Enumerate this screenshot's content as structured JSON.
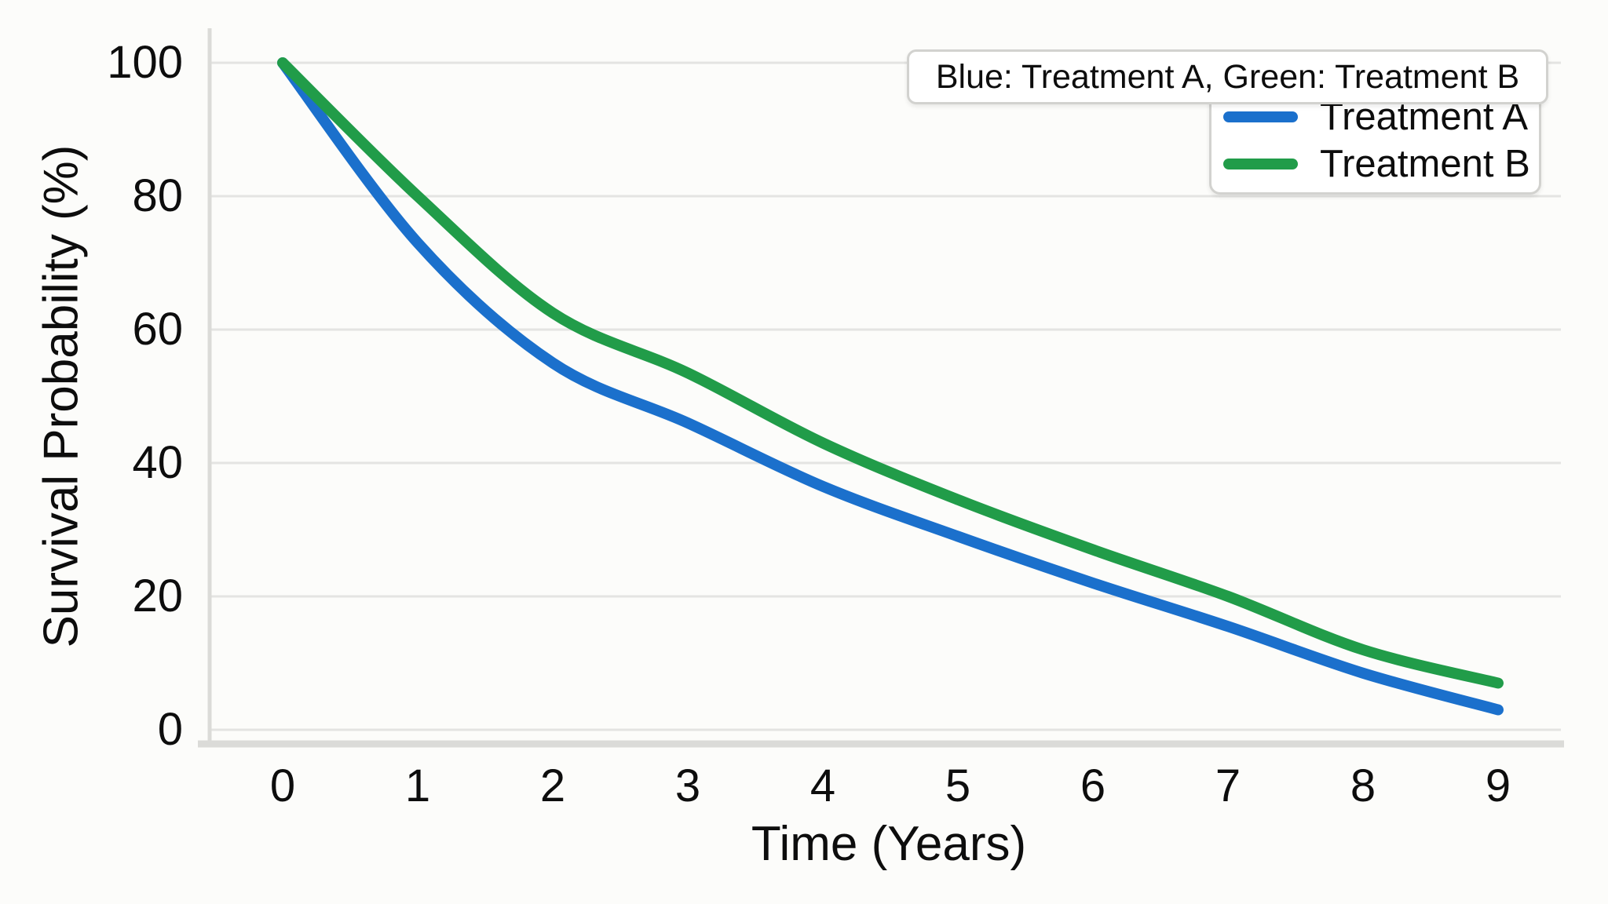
{
  "chart_data": {
    "type": "line",
    "xlabel": "Time (Years)",
    "ylabel": "Survival Probability (%)",
    "legend_title": "Blue: Treatment A, Green: Treatment B",
    "legend_position": "upper right",
    "grid": "horizontal",
    "xlim": [
      0,
      9
    ],
    "ylim": [
      0,
      100
    ],
    "x": [
      0,
      1,
      2,
      3,
      4,
      5,
      6,
      7,
      8,
      9
    ],
    "x_ticks": [
      0,
      1,
      2,
      3,
      4,
      5,
      6,
      7,
      8,
      9
    ],
    "y_ticks": [
      0,
      20,
      40,
      60,
      80,
      100
    ],
    "series": [
      {
        "name": "Treatment A",
        "color": "#1b70cc",
        "values": [
          100,
          73,
          55,
          46,
          36.5,
          29,
          22,
          15.5,
          8.5,
          3
        ]
      },
      {
        "name": "Treatment B",
        "color": "#219c49",
        "values": [
          100,
          80,
          62.5,
          53.5,
          43,
          34.5,
          27,
          20,
          12,
          7
        ]
      }
    ],
    "colors": {
      "gridline": "#e4e4e2",
      "spine": "#dbdbd8",
      "text": "#0d0d0d",
      "background": "#fcfcfa",
      "legend_border": "#d2d2cf"
    }
  }
}
